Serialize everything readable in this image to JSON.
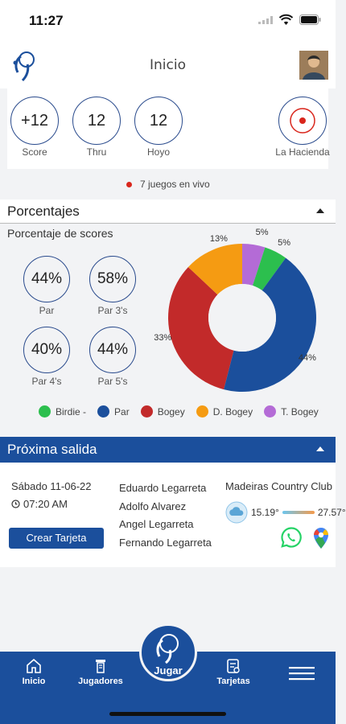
{
  "status_bar": {
    "time": "11:27"
  },
  "header": {
    "title": "Inicio"
  },
  "scorecard": {
    "items": [
      {
        "value": "+12",
        "label": "Score"
      },
      {
        "value": "12",
        "label": "Thru"
      },
      {
        "value": "12",
        "label": "Hoyo"
      }
    ],
    "course_label": "La Hacienda"
  },
  "live": {
    "text": "7 juegos en vivo"
  },
  "porcentajes": {
    "title": "Porcentajes",
    "subtitle": "Porcentaje de scores",
    "stats": [
      {
        "value": "44%",
        "label": "Par"
      },
      {
        "value": "58%",
        "label": "Par 3's"
      },
      {
        "value": "40%",
        "label": "Par 4's"
      },
      {
        "value": "44%",
        "label": "Par 5's"
      }
    ],
    "legend": [
      {
        "label": "Birdie -",
        "color": "#2cbf4e"
      },
      {
        "label": "Par",
        "color": "#1b4f9c"
      },
      {
        "label": "Bogey",
        "color": "#c22a2a"
      },
      {
        "label": "D. Bogey",
        "color": "#f59b12"
      },
      {
        "label": "T. Bogey",
        "color": "#b46bd6"
      }
    ]
  },
  "chart_data": {
    "type": "pie",
    "categories": [
      "Bogey",
      "D. Bogey",
      "T. Bogey",
      "Birdie -",
      "Par"
    ],
    "values": [
      33,
      13,
      5,
      5,
      44
    ],
    "labels": [
      "33%",
      "13%",
      "5%",
      "5%",
      "44%"
    ],
    "colors": [
      "#c22a2a",
      "#f59b12",
      "#b46bd6",
      "#2cbf4e",
      "#1b4f9c"
    ],
    "donut": true
  },
  "proxima_salida": {
    "title": "Próxima salida",
    "date": "Sábado 11-06-22",
    "time": "07:20 AM",
    "button_label": "Crear Tarjeta",
    "players": [
      "Eduardo Legarreta",
      "Adolfo Alvarez",
      "Angel Legarreta",
      "Fernando Legarreta"
    ],
    "club": "Madeiras Country Club",
    "temp_min": "15.19°",
    "temp_max": "27.57°"
  },
  "nav": {
    "items": [
      {
        "label": "Inicio",
        "icon": "home-icon"
      },
      {
        "label": "Jugadores",
        "icon": "players-icon"
      },
      {
        "label": "Jugar",
        "icon": "golf-logo-icon"
      },
      {
        "label": "Tarjetas",
        "icon": "scorecard-icon"
      },
      {
        "label": "",
        "icon": "menu-icon"
      }
    ]
  }
}
